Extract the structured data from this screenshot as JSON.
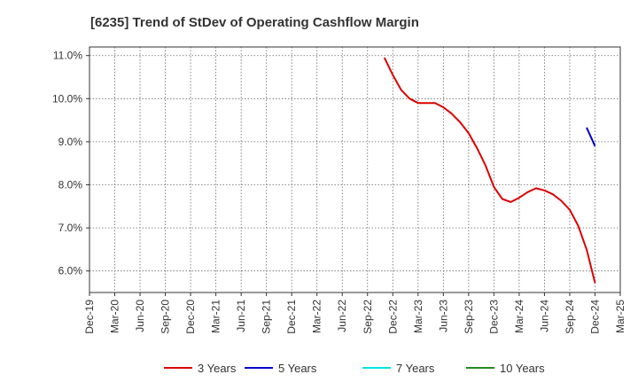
{
  "chart_data": {
    "type": "line",
    "title": "[6235]  Trend of StDev of Operating Cashflow Margin",
    "xlabel": "",
    "ylabel": "",
    "x_ticks": [
      "Dec-19",
      "Mar-20",
      "Jun-20",
      "Sep-20",
      "Dec-20",
      "Mar-21",
      "Jun-21",
      "Sep-21",
      "Dec-21",
      "Mar-22",
      "Jun-22",
      "Sep-22",
      "Dec-22",
      "Mar-23",
      "Jun-23",
      "Sep-23",
      "Dec-23",
      "Mar-24",
      "Jun-24",
      "Sep-24",
      "Dec-24",
      "Mar-25"
    ],
    "y_ticks": [
      "6.0%",
      "7.0%",
      "8.0%",
      "9.0%",
      "10.0%",
      "11.0%"
    ],
    "y_tick_values": [
      6.0,
      7.0,
      8.0,
      9.0,
      10.0,
      11.0
    ],
    "ylim": [
      5.5,
      11.2
    ],
    "grid": true,
    "legend_position": "bottom",
    "series": [
      {
        "name": "3 Years",
        "color": "#dd0000",
        "x": [
          "Nov-22",
          "Dec-22",
          "Jan-23",
          "Feb-23",
          "Mar-23",
          "Apr-23",
          "May-23",
          "Jun-23",
          "Jul-23",
          "Aug-23",
          "Sep-23",
          "Oct-23",
          "Nov-23",
          "Dec-23",
          "Jan-24",
          "Feb-24",
          "Mar-24",
          "Apr-24",
          "May-24",
          "Jun-24",
          "Jul-24",
          "Aug-24",
          "Sep-24",
          "Oct-24",
          "Nov-24",
          "Dec-24"
        ],
        "values": [
          10.95,
          10.55,
          10.2,
          10.0,
          9.9,
          9.9,
          9.9,
          9.8,
          9.65,
          9.45,
          9.2,
          8.85,
          8.45,
          7.95,
          7.67,
          7.6,
          7.7,
          7.83,
          7.92,
          7.87,
          7.78,
          7.63,
          7.42,
          7.05,
          6.5,
          5.72
        ]
      },
      {
        "name": "5 Years",
        "color": "#0000cc",
        "x": [
          "Nov-24",
          "Dec-24"
        ],
        "values": [
          9.33,
          8.9
        ]
      },
      {
        "name": "7 Years",
        "color": "#00e5e5",
        "x": [],
        "values": []
      },
      {
        "name": "10 Years",
        "color": "#228b22",
        "x": [],
        "values": []
      }
    ]
  }
}
